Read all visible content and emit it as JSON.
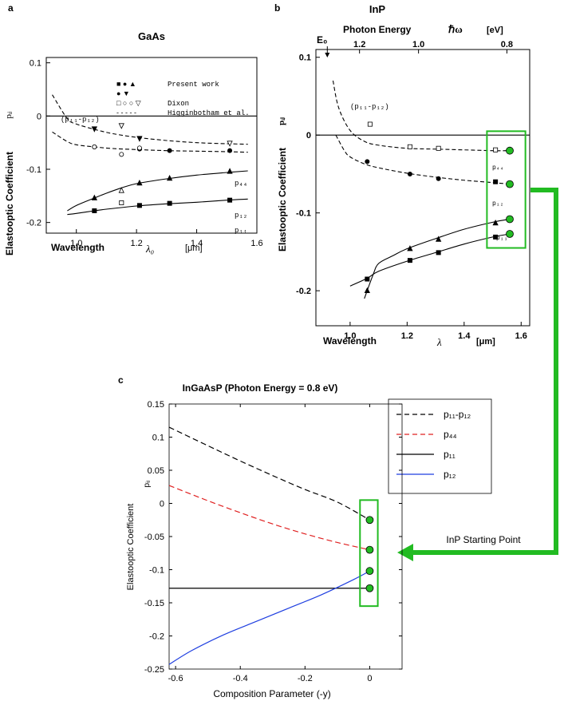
{
  "figure": {
    "panel_labels": {
      "a": "a",
      "b": "b",
      "c": "c"
    },
    "highlight_color": "#22bb22",
    "arrow_label": "InP Starting Point"
  },
  "chart_data": [
    {
      "id": "a",
      "type": "line",
      "title": "GaAs",
      "xlabel": "Wavelength",
      "xsymbol": "λ₀",
      "xunit": "[μm]",
      "ylabel": "Elastooptic Coefficient",
      "ysymbol": "pᵢⱼ",
      "xlim": [
        0.9,
        1.6
      ],
      "ylim": [
        -0.22,
        0.11
      ],
      "xticks": [
        "1.0",
        "1.2",
        "1.4",
        "1.6"
      ],
      "xtick_values": [
        1.0,
        1.2,
        1.4,
        1.6
      ],
      "yticks": [
        "0.1",
        "0",
        "-0.1",
        "-0.2"
      ],
      "ytick_values": [
        0.1,
        0,
        -0.1,
        -0.2
      ],
      "legend": [
        {
          "marker": "■ ●  ▲",
          "label": "Present work"
        },
        {
          "marker": "● ▼",
          "label": ""
        },
        {
          "marker": "□ ○ ○ ▽",
          "label": "Dixon"
        },
        {
          "marker": "- - - - -",
          "label": "Higginbotham et al."
        }
      ],
      "curve_labels": {
        "p11_p12": "(p₁₁-p₁₂)",
        "p44": "p₄₄",
        "p12": "p₁₂",
        "p11": "p₁₁"
      },
      "series": [
        {
          "key": "p11_p12_curve",
          "style": "dashed",
          "x": [
            0.92,
            0.97,
            1.0,
            1.06,
            1.12,
            1.2,
            1.3,
            1.4,
            1.5,
            1.57
          ],
          "y": [
            0.04,
            -0.005,
            -0.015,
            -0.025,
            -0.033,
            -0.04,
            -0.046,
            -0.05,
            -0.052,
            -0.053
          ]
        },
        {
          "key": "p44_curve",
          "style": "dashed",
          "x": [
            0.92,
            0.97,
            1.0,
            1.06,
            1.12,
            1.2,
            1.3,
            1.4,
            1.5,
            1.57
          ],
          "y": [
            -0.03,
            -0.048,
            -0.054,
            -0.058,
            -0.061,
            -0.063,
            -0.065,
            -0.066,
            -0.067,
            -0.068
          ]
        },
        {
          "key": "p12_curve",
          "style": "solid",
          "x": [
            0.97,
            1.0,
            1.06,
            1.1,
            1.15,
            1.2,
            1.3,
            1.4,
            1.5,
            1.57
          ],
          "y": [
            -0.178,
            -0.168,
            -0.154,
            -0.145,
            -0.135,
            -0.127,
            -0.118,
            -0.111,
            -0.106,
            -0.103
          ]
        },
        {
          "key": "p11_curve",
          "style": "solid",
          "x": [
            0.97,
            1.0,
            1.06,
            1.1,
            1.2,
            1.3,
            1.4,
            1.5,
            1.57
          ],
          "y": [
            -0.185,
            -0.183,
            -0.178,
            -0.175,
            -0.169,
            -0.165,
            -0.162,
            -0.158,
            -0.156
          ]
        }
      ],
      "points": [
        {
          "m": "tridown",
          "x": 1.06,
          "y": -0.024
        },
        {
          "m": "tridown",
          "x": 1.21,
          "y": -0.042
        },
        {
          "m": "circle",
          "x": 1.06,
          "y": -0.058
        },
        {
          "m": "circle",
          "x": 1.21,
          "y": -0.062
        },
        {
          "m": "circle",
          "x": 1.31,
          "y": -0.065
        },
        {
          "m": "circle",
          "x": 1.51,
          "y": -0.065
        },
        {
          "m": "tri",
          "x": 1.06,
          "y": -0.154
        },
        {
          "m": "tri",
          "x": 1.21,
          "y": -0.126
        },
        {
          "m": "tri",
          "x": 1.31,
          "y": -0.117
        },
        {
          "m": "tri",
          "x": 1.51,
          "y": -0.104
        },
        {
          "m": "square",
          "x": 1.06,
          "y": -0.178
        },
        {
          "m": "square",
          "x": 1.21,
          "y": -0.168
        },
        {
          "m": "square",
          "x": 1.31,
          "y": -0.164
        },
        {
          "m": "square",
          "x": 1.51,
          "y": -0.158
        },
        {
          "m": "otridown",
          "x": 1.15,
          "y": -0.018
        },
        {
          "m": "otridown",
          "x": 1.51,
          "y": -0.051
        },
        {
          "m": "ocircle",
          "x": 1.06,
          "y": -0.058
        },
        {
          "m": "ocircle",
          "x": 1.15,
          "y": -0.072
        },
        {
          "m": "ocircle",
          "x": 1.21,
          "y": -0.06
        },
        {
          "m": "otri",
          "x": 1.15,
          "y": -0.14
        },
        {
          "m": "osquare",
          "x": 1.15,
          "y": -0.163
        }
      ]
    },
    {
      "id": "b",
      "type": "line",
      "title": "InP",
      "top_axis_label": "Photon Energy",
      "top_symbol": "ℏω",
      "top_unit": "[eV]",
      "top_ticks": [
        "1.2",
        "1.0",
        "0.8"
      ],
      "top_tick_values": [
        1.033,
        1.24,
        1.55
      ],
      "edge_label": "E₀",
      "edge_x": 0.92,
      "xlabel": "Wavelength",
      "xsymbol": "λ",
      "xunit": "[μm]",
      "ylabel": "Elastooptic Coefficient",
      "ysymbol": "pᵢⱼ",
      "xlim": [
        0.88,
        1.63
      ],
      "ylim": [
        -0.245,
        0.11
      ],
      "xticks": [
        "1.0",
        "1.2",
        "1.4",
        "1.6"
      ],
      "xtick_values": [
        1.0,
        1.2,
        1.4,
        1.6
      ],
      "yticks": [
        "0.1",
        "0",
        "-0.1",
        "-0.2"
      ],
      "ytick_values": [
        0.1,
        0,
        -0.1,
        -0.2
      ],
      "curve_labels": {
        "p11_p12": "(p₁₁-p₁₂)",
        "p44": "p₄₄",
        "p12": "p₁₂",
        "p11": "p₁₁"
      },
      "series": [
        {
          "key": "p11_p12_curve",
          "style": "dashed",
          "x": [
            0.94,
            0.96,
            1.0,
            1.05,
            1.1,
            1.2,
            1.3,
            1.4,
            1.5,
            1.56
          ],
          "y": [
            0.07,
            0.035,
            0.006,
            -0.008,
            -0.013,
            -0.017,
            -0.018,
            -0.019,
            -0.02,
            -0.02
          ]
        },
        {
          "key": "p44_curve",
          "style": "dashed",
          "x": [
            0.95,
            0.98,
            1.0,
            1.05,
            1.1,
            1.2,
            1.3,
            1.4,
            1.5,
            1.56
          ],
          "y": [
            0.0,
            -0.02,
            -0.028,
            -0.037,
            -0.042,
            -0.049,
            -0.054,
            -0.058,
            -0.061,
            -0.063
          ]
        },
        {
          "key": "p12_curve",
          "style": "solid",
          "x": [
            1.05,
            1.08,
            1.1,
            1.15,
            1.2,
            1.3,
            1.4,
            1.5,
            1.56
          ],
          "y": [
            -0.21,
            -0.18,
            -0.165,
            -0.155,
            -0.146,
            -0.133,
            -0.121,
            -0.112,
            -0.108
          ]
        },
        {
          "key": "p11_curve",
          "style": "solid",
          "x": [
            1.0,
            1.06,
            1.1,
            1.2,
            1.3,
            1.4,
            1.5,
            1.56
          ],
          "y": [
            -0.194,
            -0.184,
            -0.175,
            -0.162,
            -0.151,
            -0.14,
            -0.131,
            -0.127
          ]
        }
      ],
      "points": [
        {
          "m": "osquare",
          "x": 1.07,
          "y": 0.014
        },
        {
          "m": "osquare",
          "x": 1.21,
          "y": -0.015
        },
        {
          "m": "osquare",
          "x": 1.31,
          "y": -0.017
        },
        {
          "m": "osquare",
          "x": 1.51,
          "y": -0.019
        },
        {
          "m": "circle",
          "x": 1.06,
          "y": -0.034
        },
        {
          "m": "circle",
          "x": 1.21,
          "y": -0.05
        },
        {
          "m": "circle",
          "x": 1.31,
          "y": -0.056
        },
        {
          "m": "square",
          "x": 1.51,
          "y": -0.06
        },
        {
          "m": "tri",
          "x": 1.06,
          "y": -0.2
        },
        {
          "m": "tri",
          "x": 1.21,
          "y": -0.146
        },
        {
          "m": "tri",
          "x": 1.31,
          "y": -0.134
        },
        {
          "m": "tri",
          "x": 1.51,
          "y": -0.113
        },
        {
          "m": "square",
          "x": 1.06,
          "y": -0.185
        },
        {
          "m": "square",
          "x": 1.21,
          "y": -0.161
        },
        {
          "m": "square",
          "x": 1.31,
          "y": -0.151
        },
        {
          "m": "square",
          "x": 1.51,
          "y": -0.131
        }
      ],
      "highlight_points": [
        {
          "x": 1.56,
          "y": -0.02
        },
        {
          "x": 1.56,
          "y": -0.063
        },
        {
          "x": 1.56,
          "y": -0.108
        },
        {
          "x": 1.56,
          "y": -0.127
        }
      ],
      "highlight_box": {
        "x": [
          1.48,
          1.615
        ],
        "y": [
          0.005,
          -0.145
        ]
      }
    },
    {
      "id": "c",
      "type": "line",
      "title": "InGaAsP (Photon Energy = 0.8 eV)",
      "xlabel": "Composition Parameter (-y)",
      "ylabel": "Elastooptic Coefficient",
      "ysymbol": "pᵢⱼ",
      "xlim": [
        -0.62,
        0.1
      ],
      "ylim": [
        -0.25,
        0.15
      ],
      "xticks": [
        "-0.6",
        "-0.4",
        "-0.2",
        "0"
      ],
      "xtick_values": [
        -0.6,
        -0.4,
        -0.2,
        0
      ],
      "yticks": [
        "0.15",
        "0.1",
        "0.05",
        "0",
        "-0.05",
        "-0.1",
        "-0.15",
        "-0.2",
        "-0.25"
      ],
      "ytick_values": [
        0.15,
        0.1,
        0.05,
        0,
        -0.05,
        -0.1,
        -0.15,
        -0.2,
        -0.25
      ],
      "grid": false,
      "legend_position": "top-right",
      "series": [
        {
          "name": "p₁₁-p₁₂",
          "color": "#000000",
          "style": "dashed",
          "x": [
            -0.62,
            -0.5,
            -0.4,
            -0.3,
            -0.2,
            -0.1,
            0
          ],
          "y": [
            0.115,
            0.087,
            0.064,
            0.042,
            0.021,
            0.002,
            -0.025
          ]
        },
        {
          "name": "p₄₄",
          "color": "#e02020",
          "style": "dashed",
          "x": [
            -0.62,
            -0.5,
            -0.4,
            -0.3,
            -0.2,
            -0.1,
            0
          ],
          "y": [
            0.027,
            0.004,
            -0.014,
            -0.031,
            -0.046,
            -0.059,
            -0.07
          ]
        },
        {
          "name": "p₁₁",
          "color": "#000000",
          "style": "solid",
          "x": [
            -0.62,
            0
          ],
          "y": [
            -0.128,
            -0.128
          ]
        },
        {
          "name": "p₁₂",
          "color": "#1f3fe0",
          "style": "solid",
          "x": [
            -0.62,
            -0.55,
            -0.45,
            -0.35,
            -0.25,
            -0.15,
            -0.05,
            0
          ],
          "y": [
            -0.243,
            -0.222,
            -0.198,
            -0.178,
            -0.158,
            -0.138,
            -0.115,
            -0.102
          ]
        }
      ],
      "highlight_points": [
        {
          "x": 0,
          "y": -0.025
        },
        {
          "x": 0,
          "y": -0.07
        },
        {
          "x": 0,
          "y": -0.102
        },
        {
          "x": 0,
          "y": -0.128
        }
      ],
      "highlight_box": {
        "x": [
          -0.03,
          0.025
        ],
        "y": [
          0.005,
          -0.155
        ]
      }
    }
  ]
}
